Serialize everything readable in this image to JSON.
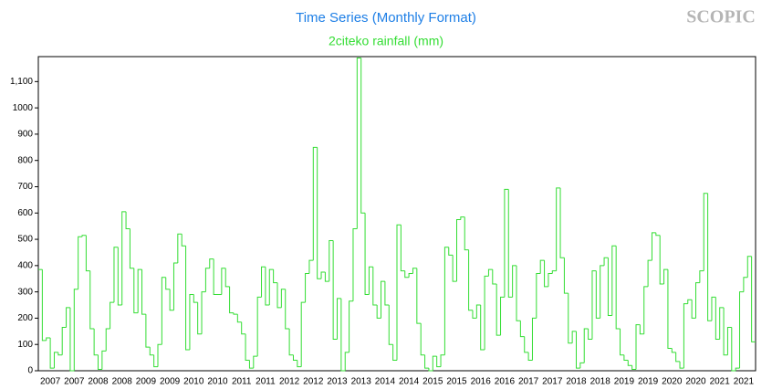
{
  "chart_data": {
    "type": "step",
    "title": "Time Series (Monthly Format)",
    "subtitle": "2citeko rainfall (mm)",
    "logo": "SCOPIC",
    "color": "#33dd33",
    "title_color": "#1e7fe6",
    "ylim": [
      0,
      1195
    ],
    "yticks": [
      0,
      100,
      200,
      300,
      400,
      500,
      600,
      700,
      800,
      900,
      1000,
      {
        "value": 1100,
        "label": "1,100"
      }
    ],
    "x_tick_labels": [
      "2007",
      "2007",
      "2008",
      "2008",
      "2009",
      "2009",
      "2010",
      "2010",
      "2011",
      "2011",
      "2012",
      "2012",
      "2013",
      "2013",
      "2014",
      "2014",
      "2015",
      "2015",
      "2016",
      "2016",
      "2017",
      "2017",
      "2018",
      "2018",
      "2019",
      "2019",
      "2020",
      "2020",
      "2021",
      "2021"
    ],
    "values": [
      385,
      115,
      125,
      10,
      70,
      60,
      165,
      240,
      0,
      310,
      510,
      515,
      380,
      160,
      60,
      5,
      75,
      160,
      260,
      470,
      250,
      605,
      540,
      390,
      220,
      385,
      215,
      90,
      60,
      15,
      100,
      355,
      310,
      230,
      410,
      520,
      475,
      80,
      290,
      260,
      140,
      300,
      390,
      425,
      290,
      290,
      390,
      320,
      220,
      215,
      185,
      140,
      40,
      10,
      55,
      280,
      395,
      250,
      385,
      335,
      240,
      310,
      160,
      60,
      40,
      15,
      260,
      370,
      420,
      850,
      350,
      375,
      340,
      495,
      120,
      275,
      0,
      70,
      265,
      540,
      1190,
      600,
      290,
      395,
      250,
      200,
      340,
      250,
      100,
      40,
      555,
      380,
      355,
      370,
      390,
      180,
      60,
      10,
      0,
      55,
      15,
      60,
      470,
      440,
      340,
      575,
      585,
      460,
      230,
      200,
      250,
      80,
      360,
      385,
      330,
      135,
      280,
      690,
      280,
      400,
      190,
      130,
      70,
      40,
      200,
      370,
      420,
      320,
      370,
      380,
      695,
      430,
      295,
      105,
      150,
      10,
      30,
      160,
      120,
      380,
      200,
      400,
      430,
      210,
      475,
      160,
      60,
      40,
      20,
      5,
      175,
      140,
      320,
      420,
      525,
      515,
      330,
      385,
      85,
      70,
      35,
      10,
      255,
      270,
      200,
      335,
      380,
      675,
      190,
      280,
      120,
      240,
      60,
      165,
      0,
      10,
      300,
      355,
      435,
      110
    ]
  }
}
